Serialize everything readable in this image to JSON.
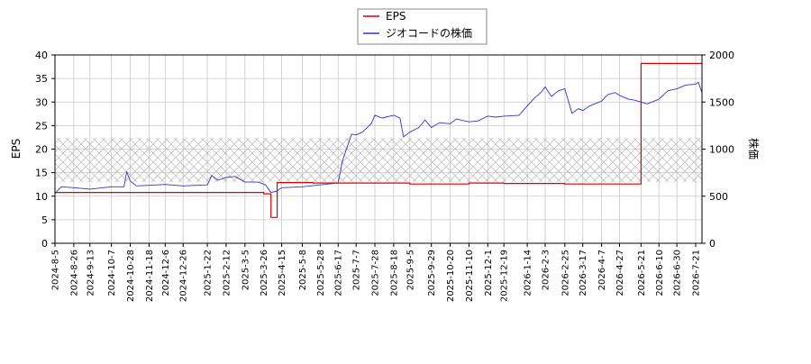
{
  "chart_data": {
    "type": "line",
    "legend": {
      "placement": "top-center",
      "entries": [
        {
          "label": "EPS",
          "color": "#dd0000"
        },
        {
          "label": "ジオコードの株価",
          "color": "#3333cc"
        }
      ]
    },
    "ylabel_left": "EPS",
    "ylabel_right": "株価",
    "ylim_left": [
      0,
      40
    ],
    "ylim_right": [
      0,
      2000
    ],
    "yticks_left": [
      "0",
      "5",
      "10",
      "15",
      "20",
      "25",
      "30",
      "35",
      "40"
    ],
    "yticks_right": [
      "0",
      "500",
      "1000",
      "1500",
      "2000"
    ],
    "grid": true,
    "hatched_band_right": [
      650,
      1120
    ],
    "xticks": [
      "2024-8-5",
      "2024-8-26",
      "2024-9-13",
      "2024-10-7",
      "2024-10-28",
      "2024-11-18",
      "2024-12-6",
      "2024-12-26",
      "2025-1-22",
      "2025-2-12",
      "2025-3-5",
      "2025-3-26",
      "2025-4-15",
      "2025-5-8",
      "2025-5-28",
      "2025-6-17",
      "2025-7-7",
      "2025-7-28",
      "2025-8-18",
      "2025-9-5",
      "2025-9-29",
      "2025-10-20",
      "2025-11-10",
      "2025-12-1",
      "2025-12-19",
      "2026-1-14",
      "2026-2-3",
      "2026-2-25",
      "2026-3-17",
      "2026-4-7",
      "2026-4-27",
      "2026-5-21",
      "2026-6-10",
      "2026-6-30",
      "2026-7-21"
    ],
    "series": [
      {
        "name": "EPS",
        "color": "#dd0000",
        "axis": "left",
        "points": [
          [
            "2024-8-5",
            10.8
          ],
          [
            "2025-3-26",
            10.8
          ],
          [
            "2025-3-26",
            10.5
          ],
          [
            "2025-4-3",
            10.5
          ],
          [
            "2025-4-3",
            5.5
          ],
          [
            "2025-4-10",
            5.5
          ],
          [
            "2025-4-10",
            12.9
          ],
          [
            "2025-5-20",
            12.9
          ],
          [
            "2025-5-20",
            12.8
          ],
          [
            "2025-9-5",
            12.8
          ],
          [
            "2025-9-5",
            12.6
          ],
          [
            "2025-11-10",
            12.6
          ],
          [
            "2025-11-10",
            12.8
          ],
          [
            "2025-12-19",
            12.8
          ],
          [
            "2025-12-19",
            12.7
          ],
          [
            "2026-2-25",
            12.7
          ],
          [
            "2026-2-25",
            12.6
          ],
          [
            "2026-5-21",
            12.6
          ],
          [
            "2026-5-21",
            38.2
          ],
          [
            "2026-7-28",
            38.2
          ]
        ]
      },
      {
        "name": "ジオコードの株価",
        "color": "#3333cc",
        "axis": "right",
        "points": [
          [
            "2024-8-5",
            530
          ],
          [
            "2024-8-12",
            600
          ],
          [
            "2024-8-26",
            590
          ],
          [
            "2024-9-13",
            575
          ],
          [
            "2024-10-7",
            600
          ],
          [
            "2024-10-21",
            600
          ],
          [
            "2024-10-24",
            760
          ],
          [
            "2024-10-28",
            660
          ],
          [
            "2024-11-4",
            610
          ],
          [
            "2024-11-18",
            615
          ],
          [
            "2024-12-6",
            625
          ],
          [
            "2024-12-26",
            610
          ],
          [
            "2025-1-22",
            620
          ],
          [
            "2025-1-27",
            720
          ],
          [
            "2025-2-3",
            670
          ],
          [
            "2025-2-12",
            700
          ],
          [
            "2025-2-22",
            710
          ],
          [
            "2025-3-5",
            650
          ],
          [
            "2025-3-20",
            650
          ],
          [
            "2025-3-28",
            620
          ],
          [
            "2025-4-3",
            540
          ],
          [
            "2025-4-10",
            555
          ],
          [
            "2025-4-15",
            590
          ],
          [
            "2025-5-8",
            600
          ],
          [
            "2025-5-28",
            620
          ],
          [
            "2025-6-17",
            640
          ],
          [
            "2025-6-22",
            880
          ],
          [
            "2025-6-28",
            1050
          ],
          [
            "2025-7-2",
            1160
          ],
          [
            "2025-7-7",
            1150
          ],
          [
            "2025-7-14",
            1180
          ],
          [
            "2025-7-24",
            1270
          ],
          [
            "2025-7-28",
            1360
          ],
          [
            "2025-8-5",
            1330
          ],
          [
            "2025-8-18",
            1360
          ],
          [
            "2025-8-25",
            1330
          ],
          [
            "2025-8-29",
            1130
          ],
          [
            "2025-9-5",
            1180
          ],
          [
            "2025-9-15",
            1230
          ],
          [
            "2025-9-22",
            1310
          ],
          [
            "2025-9-29",
            1230
          ],
          [
            "2025-10-8",
            1280
          ],
          [
            "2025-10-20",
            1270
          ],
          [
            "2025-10-27",
            1320
          ],
          [
            "2025-11-10",
            1290
          ],
          [
            "2025-11-20",
            1300
          ],
          [
            "2025-12-1",
            1350
          ],
          [
            "2025-12-10",
            1340
          ],
          [
            "2025-12-19",
            1350
          ],
          [
            "2026-1-5",
            1360
          ],
          [
            "2026-1-14",
            1460
          ],
          [
            "2026-1-22",
            1540
          ],
          [
            "2026-1-30",
            1610
          ],
          [
            "2026-2-3",
            1660
          ],
          [
            "2026-2-10",
            1560
          ],
          [
            "2026-2-18",
            1620
          ],
          [
            "2026-2-25",
            1640
          ],
          [
            "2026-3-5",
            1380
          ],
          [
            "2026-3-12",
            1430
          ],
          [
            "2026-3-17",
            1410
          ],
          [
            "2026-3-25",
            1460
          ],
          [
            "2026-4-7",
            1510
          ],
          [
            "2026-4-14",
            1580
          ],
          [
            "2026-4-22",
            1600
          ],
          [
            "2026-4-27",
            1570
          ],
          [
            "2026-5-7",
            1530
          ],
          [
            "2026-5-14",
            1520
          ],
          [
            "2026-5-21",
            1500
          ],
          [
            "2026-5-28",
            1480
          ],
          [
            "2026-6-10",
            1530
          ],
          [
            "2026-6-20",
            1620
          ],
          [
            "2026-6-30",
            1640
          ],
          [
            "2026-7-10",
            1680
          ],
          [
            "2026-7-21",
            1690
          ],
          [
            "2026-7-24",
            1710
          ],
          [
            "2026-7-28",
            1600
          ]
        ]
      }
    ]
  }
}
